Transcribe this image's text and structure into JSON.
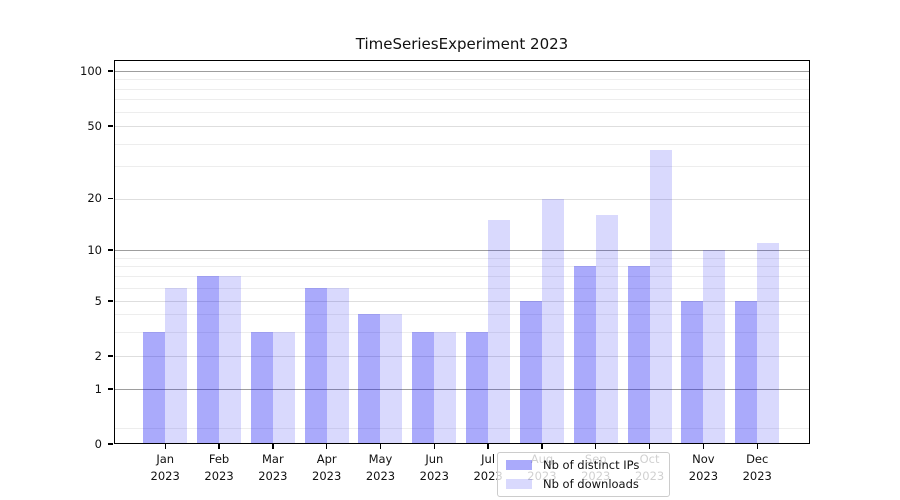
{
  "figure": {
    "title": "TimeSeriesExperiment 2023",
    "background": "#ffffff"
  },
  "chart_data": {
    "type": "bar",
    "title": "TimeSeriesExperiment 2023",
    "categories": [
      "Jan",
      "Feb",
      "Mar",
      "Apr",
      "May",
      "Jun",
      "Jul",
      "Aug",
      "Sep",
      "Oct",
      "Nov",
      "Dec"
    ],
    "year_label": "2023",
    "series": [
      {
        "name": "Nb of distinct IPs",
        "color": "rgba(20,20,245,0.36)",
        "values": [
          3,
          7,
          3,
          6,
          4,
          3,
          3,
          5,
          8,
          8,
          5,
          5
        ]
      },
      {
        "name": "Nb of downloads",
        "color": "rgba(20,20,245,0.16)",
        "values": [
          6,
          7,
          3,
          6,
          4,
          3,
          15,
          20,
          16,
          37,
          10,
          11
        ]
      }
    ],
    "y_axis": {
      "scale": "log-like",
      "major_ticks": [
        0,
        1,
        2,
        5,
        10,
        20,
        50,
        100
      ],
      "tick_labels": [
        "0",
        "1",
        "2",
        "5",
        "10",
        "20",
        "50",
        "100"
      ],
      "emphasized_gridlines": [
        1,
        10,
        100
      ],
      "secondary_gridlines": [
        2,
        5,
        20,
        50
      ],
      "minor_gridlines": [
        0.3,
        3,
        4,
        6,
        7,
        8,
        9,
        30,
        40,
        60,
        70,
        80,
        90
      ],
      "range_top_value": 110
    },
    "x_axis": {
      "tick_count": 12
    },
    "legend": {
      "position": "lower center",
      "entries": [
        "Nb of distinct IPs",
        "Nb of downloads"
      ]
    },
    "grid": true
  }
}
